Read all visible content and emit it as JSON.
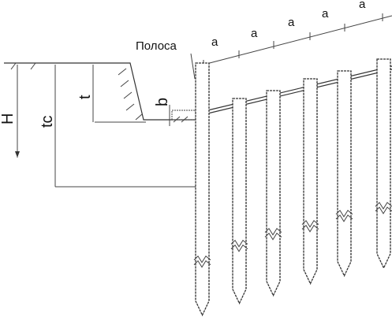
{
  "labels": {
    "strip": "Полоса",
    "spacing": [
      "a",
      "a",
      "a",
      "a",
      "a"
    ],
    "b": "b",
    "H": "H",
    "tc": "tc",
    "t": "t"
  }
}
